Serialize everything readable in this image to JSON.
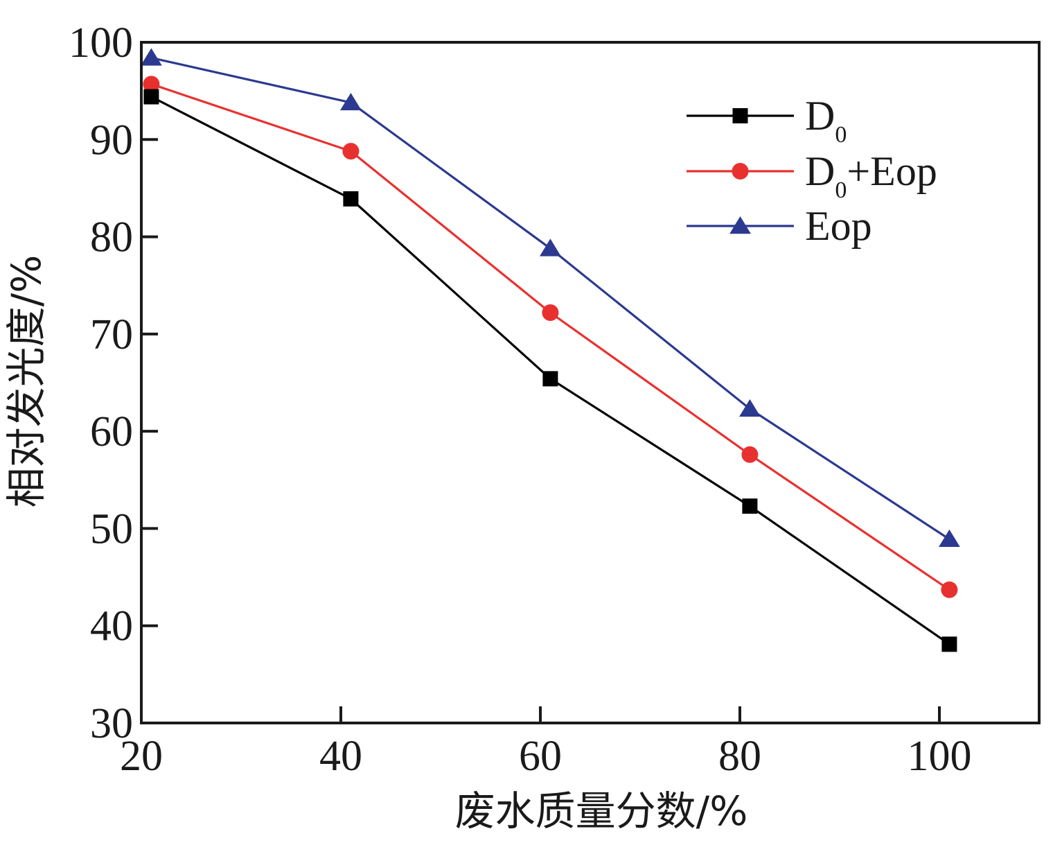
{
  "chart_data": {
    "type": "line",
    "xlabel": "废水质量分数/%",
    "ylabel": "相对发光度/%",
    "xlim": [
      20,
      110
    ],
    "ylim": [
      30,
      100
    ],
    "x_ticks": [
      20,
      40,
      60,
      80,
      100
    ],
    "y_ticks": [
      30,
      40,
      50,
      60,
      70,
      80,
      90,
      100
    ],
    "x": [
      21,
      41,
      61,
      81,
      101
    ],
    "grid": false,
    "legend_position": "top-right",
    "series": [
      {
        "name": "D0",
        "legend_main": "D",
        "legend_sub": "0",
        "legend_suffix": "",
        "marker": "square",
        "color": "#000000",
        "values": [
          94.4,
          83.9,
          65.4,
          52.3,
          38.1
        ]
      },
      {
        "name": "D0+Eop",
        "legend_main": "D",
        "legend_sub": "0",
        "legend_suffix": "+Eop",
        "marker": "circle",
        "color": "#e8312f",
        "values": [
          95.7,
          88.8,
          72.2,
          57.6,
          43.7
        ]
      },
      {
        "name": "Eop",
        "legend_main": "Eop",
        "legend_sub": "",
        "legend_suffix": "",
        "marker": "triangle",
        "color": "#2b3990",
        "values": [
          98.4,
          93.8,
          78.8,
          62.3,
          48.9
        ]
      }
    ]
  }
}
